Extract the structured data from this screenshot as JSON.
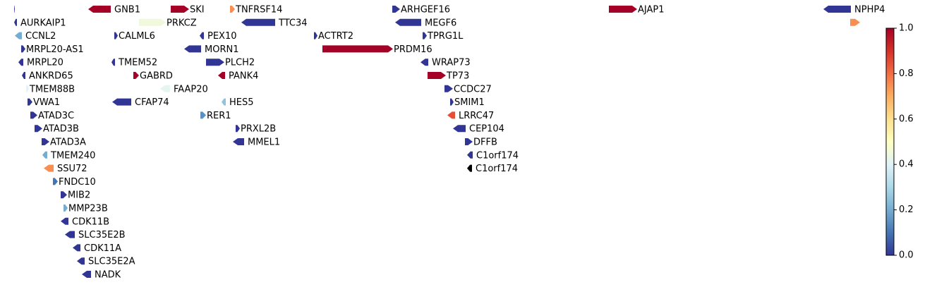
{
  "chart_data": {
    "type": "gene-track",
    "xlim": [
      0,
      1338
    ],
    "genes": [
      {
        "name": null,
        "start": 20,
        "end": 21,
        "strand": "+",
        "value": 0,
        "lane": 0
      },
      {
        "name": "GNB1",
        "start": 125,
        "end": 157,
        "strand": "-",
        "value": 1.0,
        "lane": 0
      },
      {
        "name": "SKI",
        "start": 242,
        "end": 268,
        "strand": "+",
        "value": 1.0,
        "lane": 0
      },
      {
        "name": "TNFRSF14",
        "start": 326,
        "end": 333,
        "strand": "+",
        "value": 0.75,
        "lane": 0
      },
      {
        "name": "ARHGEF16",
        "start": 556,
        "end": 567,
        "strand": "+",
        "value": 0,
        "lane": 0
      },
      {
        "name": "AJAP1",
        "start": 863,
        "end": 903,
        "strand": "+",
        "value": 1.0,
        "lane": 0
      },
      {
        "name": "NPHP4",
        "start": 1167,
        "end": 1206,
        "strand": "-",
        "value": 0,
        "lane": 0
      },
      {
        "name": "AURKAIP1",
        "start": 20,
        "end": 24,
        "strand": "-",
        "value": 0,
        "lane": 1
      },
      {
        "name": "PRKCZ",
        "start": 197,
        "end": 235,
        "strand": "+",
        "value": 0.45,
        "lane": 1
      },
      {
        "name": "TTC34",
        "start": 342,
        "end": 390,
        "strand": "-",
        "value": 0,
        "lane": 1
      },
      {
        "name": "MEGF6",
        "start": 560,
        "end": 597,
        "strand": "-",
        "value": 0,
        "lane": 1
      },
      {
        "name": null,
        "start": 1205,
        "end": 1219,
        "strand": "+",
        "value": 0.75,
        "lane": 1
      },
      {
        "name": "CCNL2",
        "start": 21,
        "end": 31,
        "strand": "-",
        "value": 0.2,
        "lane": 2
      },
      {
        "name": "CALML6",
        "start": 162,
        "end": 167,
        "strand": "+",
        "value": 0,
        "lane": 2
      },
      {
        "name": "PEX10",
        "start": 283,
        "end": 289,
        "strand": "-",
        "value": 0,
        "lane": 2
      },
      {
        "name": "ACTRT2",
        "start": 445,
        "end": 450,
        "strand": "+",
        "value": 0,
        "lane": 2
      },
      {
        "name": "TPRG1L",
        "start": 599,
        "end": 605,
        "strand": "+",
        "value": 0,
        "lane": 2
      },
      {
        "name": "MRPL20-AS1",
        "start": 30,
        "end": 36,
        "strand": "+",
        "value": 0,
        "lane": 3
      },
      {
        "name": "MORN1",
        "start": 261,
        "end": 285,
        "strand": "-",
        "value": 0,
        "lane": 3
      },
      {
        "name": "PRDM16",
        "start": 457,
        "end": 557,
        "strand": "+",
        "value": 1.0,
        "lane": 3
      },
      {
        "name": "MRPL20",
        "start": 26,
        "end": 33,
        "strand": "-",
        "value": 0,
        "lane": 4
      },
      {
        "name": "TMEM52",
        "start": 158,
        "end": 163,
        "strand": "-",
        "value": 0,
        "lane": 4
      },
      {
        "name": "PLCH2",
        "start": 292,
        "end": 318,
        "strand": "+",
        "value": 0,
        "lane": 4
      },
      {
        "name": "WRAP73",
        "start": 596,
        "end": 607,
        "strand": "-",
        "value": 0,
        "lane": 4
      },
      {
        "name": "ANKRD65",
        "start": 31,
        "end": 36,
        "strand": "-",
        "value": 0,
        "lane": 5
      },
      {
        "name": "GABRD",
        "start": 189,
        "end": 197,
        "strand": "+",
        "value": 1.0,
        "lane": 5
      },
      {
        "name": "PANK4",
        "start": 309,
        "end": 319,
        "strand": "-",
        "value": 1.0,
        "lane": 5
      },
      {
        "name": "TP73",
        "start": 606,
        "end": 632,
        "strand": "+",
        "value": 1.0,
        "lane": 5
      },
      {
        "name": "TMEM88B",
        "start": 37,
        "end": 41,
        "strand": "+",
        "value": 0.4,
        "lane": 6
      },
      {
        "name": "FAAP20",
        "start": 227,
        "end": 241,
        "strand": "-",
        "value": 0.42,
        "lane": 6
      },
      {
        "name": "CCDC27",
        "start": 630,
        "end": 642,
        "strand": "+",
        "value": 0,
        "lane": 6
      },
      {
        "name": "VWA1",
        "start": 39,
        "end": 46,
        "strand": "+",
        "value": 0,
        "lane": 7
      },
      {
        "name": "CFAP74",
        "start": 159,
        "end": 186,
        "strand": "-",
        "value": 0,
        "lane": 7
      },
      {
        "name": "HES5",
        "start": 314,
        "end": 320,
        "strand": "-",
        "value": 0.25,
        "lane": 7
      },
      {
        "name": "SMIM1",
        "start": 638,
        "end": 643,
        "strand": "+",
        "value": 0,
        "lane": 7
      },
      {
        "name": "ATAD3C",
        "start": 43,
        "end": 53,
        "strand": "+",
        "value": 0,
        "lane": 8
      },
      {
        "name": "RER1",
        "start": 284,
        "end": 292,
        "strand": "+",
        "value": 0.15,
        "lane": 8
      },
      {
        "name": "LRRC47",
        "start": 634,
        "end": 645,
        "strand": "-",
        "value": 0.85,
        "lane": 8
      },
      {
        "name": "ATAD3B",
        "start": 49,
        "end": 60,
        "strand": "+",
        "value": 0,
        "lane": 9
      },
      {
        "name": "PRXL2B",
        "start": 334,
        "end": 340,
        "strand": "+",
        "value": 0,
        "lane": 9
      },
      {
        "name": "CEP104",
        "start": 642,
        "end": 660,
        "strand": "-",
        "value": 0,
        "lane": 9
      },
      {
        "name": "ATAD3A",
        "start": 59,
        "end": 70,
        "strand": "+",
        "value": 0,
        "lane": 10
      },
      {
        "name": "MMEL1",
        "start": 330,
        "end": 346,
        "strand": "-",
        "value": 0,
        "lane": 10
      },
      {
        "name": "DFFB",
        "start": 659,
        "end": 670,
        "strand": "+",
        "value": 0,
        "lane": 10
      },
      {
        "name": "TMEM240",
        "start": 60,
        "end": 67,
        "strand": "-",
        "value": 0.2,
        "lane": 11
      },
      {
        "name": "C1orf174",
        "start": 662,
        "end": 670,
        "strand": "-",
        "value": 0,
        "lane": 11
      },
      {
        "name": "SSU72",
        "start": 62,
        "end": 76,
        "strand": "-",
        "value": 0.75,
        "lane": 12
      },
      {
        "name": "C1orf174",
        "start": 662,
        "end": 669,
        "strand": "-",
        "value": null,
        "lane": 12
      },
      {
        "name": "FNDC10",
        "start": 75,
        "end": 82,
        "strand": "+",
        "value": 0.1,
        "lane": 13
      },
      {
        "name": "MIB2",
        "start": 86,
        "end": 95,
        "strand": "+",
        "value": 0,
        "lane": 14
      },
      {
        "name": "MMP23B",
        "start": 90,
        "end": 96,
        "strand": "+",
        "value": 0.2,
        "lane": 15
      },
      {
        "name": "CDK11B",
        "start": 86,
        "end": 97,
        "strand": "-",
        "value": 0,
        "lane": 16
      },
      {
        "name": "SLC35E2B",
        "start": 92,
        "end": 106,
        "strand": "-",
        "value": 0,
        "lane": 17
      },
      {
        "name": "CDK11A",
        "start": 103,
        "end": 114,
        "strand": "-",
        "value": 0,
        "lane": 18
      },
      {
        "name": "SLC35E2A",
        "start": 109,
        "end": 120,
        "strand": "-",
        "value": 0,
        "lane": 19
      },
      {
        "name": "NADK",
        "start": 116,
        "end": 129,
        "strand": "-",
        "value": 0,
        "lane": 20
      }
    ],
    "colorbar": {
      "lim": [
        0,
        1
      ],
      "ticks": [
        {
          "value": 0,
          "label": "0.0"
        },
        {
          "value": 0.2,
          "label": "0.2"
        },
        {
          "value": 0.4,
          "label": "0.4"
        },
        {
          "value": 0.6,
          "label": "0.6"
        },
        {
          "value": 0.8,
          "label": "0.8"
        },
        {
          "value": 1,
          "label": "1.0"
        }
      ]
    }
  }
}
